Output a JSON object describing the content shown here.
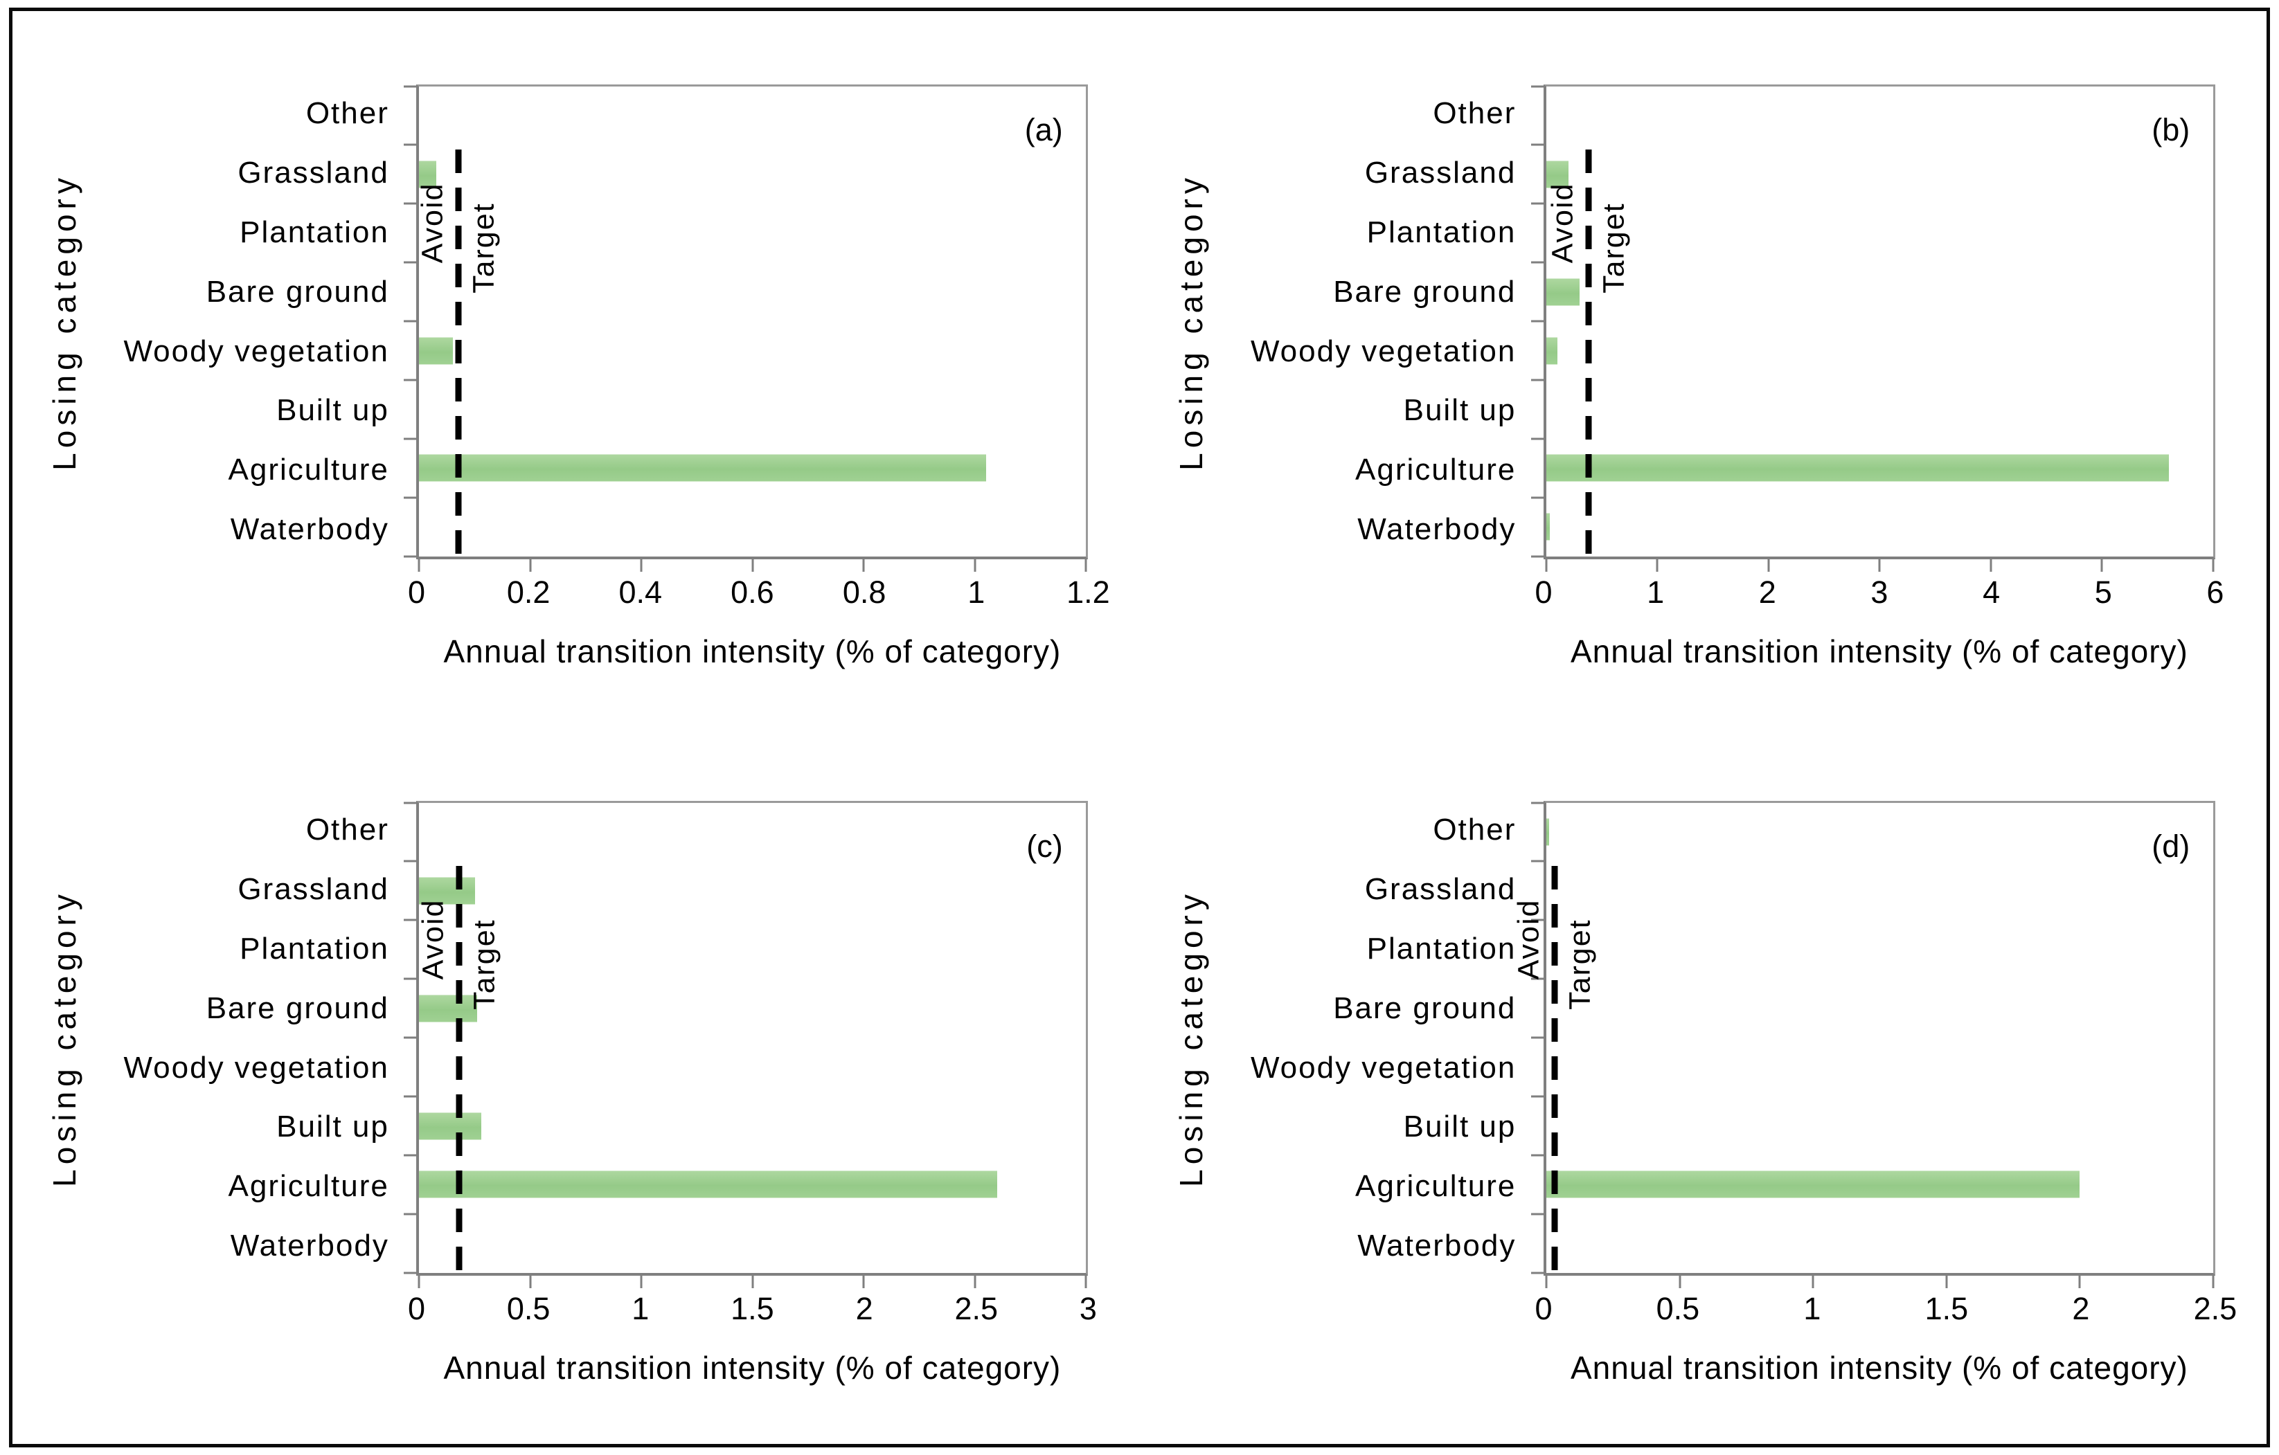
{
  "figure": {
    "background": "#ffffff",
    "border_color": "#0a0a0a",
    "bar_color": "#9cce8e",
    "axis_color": "#7f7f7f",
    "threshold_line_color": "#000000",
    "threshold_line_style": "dashed"
  },
  "labels": {
    "xlabel": "Annual transition intensity (% of category)",
    "ylabel": "Losing category",
    "avoid": "Avoid",
    "target": "Target"
  },
  "categories": [
    "Other",
    "Grassland",
    "Plantation",
    "Bare ground",
    "Woody vegetation",
    "Built up",
    "Agriculture",
    "Waterbody"
  ],
  "chart_data": [
    {
      "type": "bar",
      "orientation": "horizontal",
      "panel_label": "(a)",
      "categories": [
        "Other",
        "Grassland",
        "Plantation",
        "Bare ground",
        "Woody vegetation",
        "Built up",
        "Agriculture",
        "Waterbody"
      ],
      "values": [
        0,
        0.03,
        0,
        0,
        0.06,
        0,
        1.02,
        0
      ],
      "xlim": [
        0,
        1.2
      ],
      "xticks": [
        0,
        0.2,
        0.4,
        0.6,
        0.8,
        1,
        1.2
      ],
      "xtick_labels": [
        "0",
        "0.2",
        "0.4",
        "0.6",
        "0.8",
        "1",
        "1.2"
      ],
      "threshold": {
        "value": 0.07,
        "label_left": "Avoid",
        "label_right": "Target"
      },
      "xlabel": "Annual transition intensity (% of category)",
      "ylabel": "Losing category",
      "grid": false,
      "legend": "none"
    },
    {
      "type": "bar",
      "orientation": "horizontal",
      "panel_label": "(b)",
      "categories": [
        "Other",
        "Grassland",
        "Plantation",
        "Bare ground",
        "Woody vegetation",
        "Built up",
        "Agriculture",
        "Waterbody"
      ],
      "values": [
        0,
        0.2,
        0,
        0.3,
        0.1,
        0,
        5.6,
        0.03
      ],
      "xlim": [
        0,
        6
      ],
      "xticks": [
        0,
        1,
        2,
        3,
        4,
        5,
        6
      ],
      "xtick_labels": [
        "0",
        "1",
        "2",
        "3",
        "4",
        "5",
        "6"
      ],
      "threshold": {
        "value": 0.38,
        "label_left": "Avoid",
        "label_right": "Target"
      },
      "xlabel": "Annual transition intensity (% of category)",
      "ylabel": "Losing category",
      "grid": false,
      "legend": "none"
    },
    {
      "type": "bar",
      "orientation": "horizontal",
      "panel_label": "(c)",
      "categories": [
        "Other",
        "Grassland",
        "Plantation",
        "Bare ground",
        "Woody vegetation",
        "Built up",
        "Agriculture",
        "Waterbody"
      ],
      "values": [
        0,
        0.25,
        0,
        0.26,
        0,
        0.28,
        2.6,
        0
      ],
      "xlim": [
        0,
        3
      ],
      "xticks": [
        0,
        0.5,
        1,
        1.5,
        2,
        2.5,
        3
      ],
      "xtick_labels": [
        "0",
        "0.5",
        "1",
        "1.5",
        "2",
        "2.5",
        "3"
      ],
      "threshold": {
        "value": 0.18,
        "label_left": "Avoid",
        "label_right": "Target"
      },
      "xlabel": "Annual transition intensity (% of category)",
      "ylabel": "Losing category",
      "grid": false,
      "legend": "none"
    },
    {
      "type": "bar",
      "orientation": "horizontal",
      "panel_label": "(d)",
      "categories": [
        "Other",
        "Grassland",
        "Plantation",
        "Bare ground",
        "Woody vegetation",
        "Built up",
        "Agriculture",
        "Waterbody"
      ],
      "values": [
        0.01,
        0,
        0,
        0,
        0,
        0,
        2.0,
        0
      ],
      "xlim": [
        0,
        2.5
      ],
      "xticks": [
        0,
        0.5,
        1,
        1.5,
        2,
        2.5
      ],
      "xtick_labels": [
        "0",
        "0.5",
        "1",
        "1.5",
        "2",
        "2.5"
      ],
      "threshold": {
        "value": 0.03,
        "label_left": "Avoid",
        "label_right": "Target"
      },
      "xlabel": "Annual transition intensity (% of category)",
      "ylabel": "Losing category",
      "grid": false,
      "legend": "none"
    }
  ]
}
